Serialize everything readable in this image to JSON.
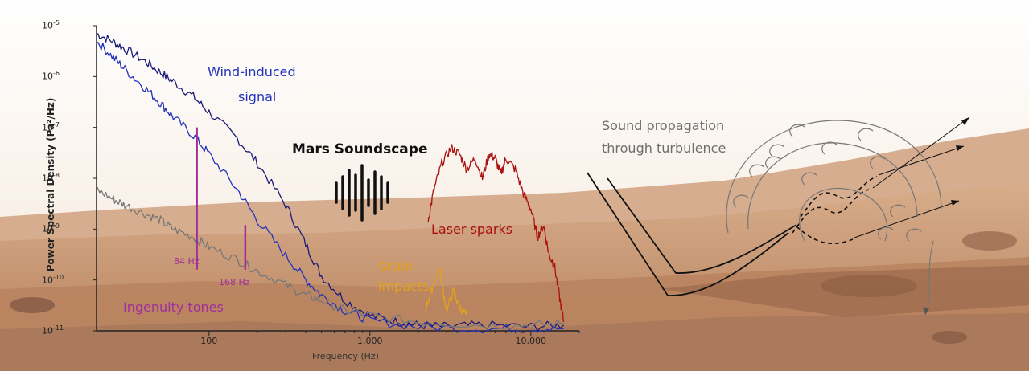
{
  "chart_data": {
    "type": "line",
    "title": "Mars Soundscape",
    "xlabel": "Frequency (Hz)",
    "ylabel": "Power Spectral Density (Pa²/Hz)",
    "x_scale": "log",
    "y_scale": "log",
    "xlim": [
      20,
      20000
    ],
    "ylim": [
      1e-11,
      1e-05
    ],
    "x_ticks": [
      {
        "value": 100,
        "label": "100"
      },
      {
        "value": 1000,
        "label": "1,000"
      },
      {
        "value": 10000,
        "label": "10,000"
      }
    ],
    "y_ticks": [
      {
        "value": 1e-05,
        "base": "10",
        "exp": "-5"
      },
      {
        "value": 1e-06,
        "base": "10",
        "exp": "-6"
      },
      {
        "value": 1e-07,
        "base": "10",
        "exp": "-7"
      },
      {
        "value": 1e-08,
        "base": "10",
        "exp": "-8"
      },
      {
        "value": 1e-09,
        "base": "10",
        "exp": "-9"
      },
      {
        "value": 1e-10,
        "base": "10",
        "exp": "-10"
      },
      {
        "value": 1e-11,
        "base": "10",
        "exp": "-11"
      }
    ],
    "series": [
      {
        "id": "wind-high",
        "color": "#1a1a7a",
        "x": [
          20,
          25,
          30,
          40,
          50,
          60,
          80,
          100,
          150,
          200,
          300,
          400,
          500,
          700,
          1000,
          1500,
          2000,
          3000,
          5000,
          10000,
          16000
        ],
        "y": [
          7e-06,
          5e-06,
          3.5e-06,
          2e-06,
          1.2e-06,
          8e-07,
          4e-07,
          2e-07,
          6e-08,
          2e-08,
          3e-09,
          5e-10,
          1.2e-10,
          4e-11,
          2e-11,
          1.5e-11,
          1.3e-11,
          1.2e-11,
          1.3e-11,
          1.2e-11,
          1.3e-11
        ]
      },
      {
        "id": "wind-low",
        "color": "#2233bb",
        "x": [
          20,
          25,
          30,
          40,
          50,
          60,
          80,
          100,
          150,
          200,
          300,
          400,
          500,
          700,
          1000,
          2000,
          5000,
          10000,
          16000
        ],
        "y": [
          5e-06,
          2.5e-06,
          1.4e-06,
          6e-07,
          3e-07,
          1.6e-07,
          7e-08,
          3e-08,
          6e-09,
          1.5e-09,
          3e-10,
          1e-10,
          5e-11,
          2.5e-11,
          1.6e-11,
          1.2e-11,
          1.1e-11,
          1.1e-11,
          1.1e-11
        ]
      },
      {
        "id": "background",
        "color": "#777777",
        "x": [
          20,
          25,
          30,
          40,
          50,
          60,
          80,
          100,
          150,
          200,
          300,
          400,
          500,
          700,
          1000,
          2000,
          5000,
          10000,
          16000
        ],
        "y": [
          6e-09,
          4e-09,
          3e-09,
          2e-09,
          1.5e-09,
          1e-09,
          7e-10,
          4.5e-10,
          2.5e-10,
          1.5e-10,
          8e-11,
          5e-11,
          4e-11,
          2.5e-11,
          2e-11,
          1.5e-11,
          1.3e-11,
          1.3e-11,
          1.4e-11
        ]
      },
      {
        "id": "laser-sparks",
        "color": "#aa1111",
        "x": [
          2300,
          2500,
          2800,
          3200,
          3600,
          4000,
          4500,
          5000,
          5500,
          6000,
          6500,
          7000,
          8000,
          9000,
          10000,
          11000,
          12000,
          13000,
          14000,
          15000,
          16000
        ],
        "y": [
          1.5e-09,
          6e-09,
          2e-08,
          4e-08,
          3e-08,
          1.5e-08,
          2.5e-08,
          1e-08,
          3e-08,
          2.5e-08,
          1.2e-08,
          2.5e-08,
          1.5e-08,
          5e-09,
          2.5e-09,
          7e-10,
          1.2e-09,
          3e-10,
          2e-10,
          5e-11,
          1.5e-11
        ]
      },
      {
        "id": "grain-impacts",
        "color": "#e0a020",
        "x": [
          2200,
          2400,
          2700,
          3000,
          3300,
          3600,
          4000
        ],
        "y": [
          2.5e-11,
          6e-11,
          1.6e-10,
          2.5e-11,
          6e-11,
          3e-11,
          2e-11
        ]
      }
    ],
    "tone_lines": [
      {
        "freq": 84,
        "top": 1e-07,
        "bottom": 1.6e-10,
        "color": "#a12e9a"
      },
      {
        "freq": 168,
        "top": 1.2e-09,
        "bottom": 1.6e-10,
        "color": "#a12e9a"
      }
    ],
    "annotations": {
      "wind": {
        "line1": "Wind-induced",
        "line2": "signal",
        "color": "#2233bb"
      },
      "laser": {
        "text": "Laser sparks",
        "color": "#aa1111"
      },
      "grain": {
        "line1": "Grain",
        "line2": "impacts",
        "color": "#e0a020"
      },
      "ingenuity": {
        "text": "Ingenuity tones",
        "color": "#a12e9a"
      },
      "tone84": {
        "text": "84 Hz",
        "color": "#a12e9a"
      },
      "tone168": {
        "text": "168 Hz",
        "color": "#a12e9a"
      },
      "propagation": {
        "line1": "Sound propagation",
        "line2": "through turbulence",
        "color": "#6e6e6e"
      }
    },
    "colors": {
      "sky": "#ffffff",
      "terrain": "#c2906b",
      "terrain_dark": "#a8775a"
    }
  }
}
